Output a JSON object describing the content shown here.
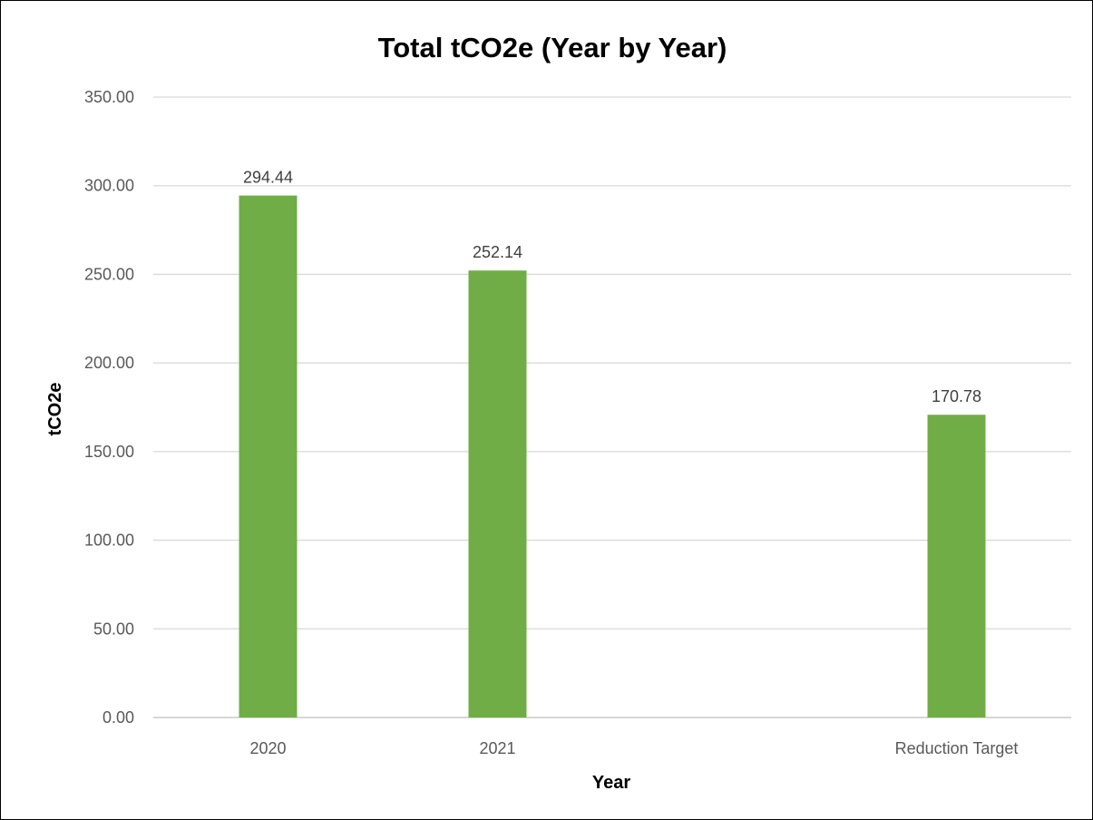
{
  "chart_data": {
    "type": "bar",
    "title": "Total tCO2e (Year by Year)",
    "xlabel": "Year",
    "ylabel": "tCO2e",
    "categories": [
      "2020",
      "2021",
      "",
      "Reduction Target"
    ],
    "values": [
      294.44,
      252.14,
      null,
      170.78
    ],
    "data_labels": [
      "294.44",
      "252.14",
      "",
      "170.78"
    ],
    "ylim": [
      0,
      350
    ],
    "yticks": [
      "0.00",
      "50.00",
      "100.00",
      "150.00",
      "200.00",
      "250.00",
      "300.00",
      "350.00"
    ],
    "grid": true,
    "legend": "none",
    "bar_color": "#70ad47"
  }
}
